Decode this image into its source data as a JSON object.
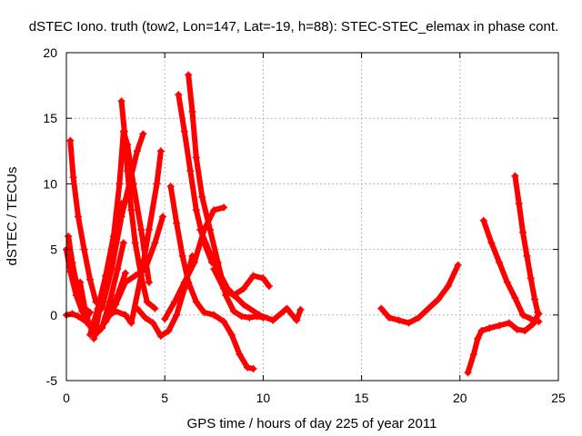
{
  "colors": {
    "series": "#ff0000",
    "grid": "#a0a0a0",
    "axis": "#000000",
    "background": "#ffffff"
  },
  "chart_data": {
    "type": "scatter",
    "marker": "plus",
    "title": "dSTEC Iono. truth (tow2, Lon=147, Lat=-19, h=88): STEC-STEC_elemax in phase cont.",
    "xlabel": "GPS time / hours of day 225 of year 2011",
    "ylabel": "dSTEC  / TECUs",
    "xlim": [
      0,
      25
    ],
    "ylim": [
      -5,
      20
    ],
    "xticks": [
      "0",
      "5",
      "10",
      "15",
      "20",
      "25"
    ],
    "yticks": [
      "-5",
      "0",
      "5",
      "10",
      "15",
      "20"
    ],
    "grid": true,
    "legend": "none",
    "series": [
      {
        "x": [
          0.0,
          0.2,
          0.5,
          0.8,
          1.0,
          1.2
        ],
        "y": [
          5.0,
          3.3,
          1.5,
          0.3,
          -0.3,
          0.2
        ]
      },
      {
        "x": [
          0.2,
          0.35,
          0.6,
          0.9,
          1.2,
          1.5
        ],
        "y": [
          13.3,
          10.5,
          7.5,
          5.0,
          2.7,
          1.0
        ]
      },
      {
        "x": [
          0.0,
          0.3,
          0.6,
          1.0,
          1.4,
          1.8,
          2.2,
          2.6,
          3.0
        ],
        "y": [
          0.0,
          0.1,
          -0.1,
          -0.5,
          -1.2,
          -0.9,
          0.0,
          1.5,
          3.2
        ]
      },
      {
        "x": [
          0.1,
          0.3,
          0.5,
          0.7,
          0.9,
          1.1
        ],
        "y": [
          6.0,
          4.0,
          2.5,
          1.3,
          0.5,
          0.3
        ]
      },
      {
        "x": [
          0.7,
          1.0,
          1.4,
          1.8,
          2.2,
          2.6,
          2.9
        ],
        "y": [
          2.5,
          0.0,
          -1.6,
          -1.0,
          1.0,
          3.5,
          5.5
        ]
      },
      {
        "x": [
          1.4,
          1.7,
          2.0,
          2.4,
          2.8
        ],
        "y": [
          -1.8,
          0.5,
          3.0,
          6.0,
          8.5
        ]
      },
      {
        "x": [
          1.2,
          1.6,
          2.0,
          2.4,
          2.7,
          2.9,
          3.1,
          3.4,
          3.8,
          4.2
        ],
        "y": [
          -1.5,
          0.5,
          3.0,
          6.0,
          10.0,
          14.0,
          13.0,
          10.0,
          6.5,
          2.5
        ]
      },
      {
        "x": [
          2.8,
          2.95,
          3.1,
          3.3,
          3.5,
          3.8,
          4.1,
          4.5
        ],
        "y": [
          16.3,
          14.0,
          11.0,
          8.0,
          5.5,
          3.0,
          1.0,
          0.5
        ]
      },
      {
        "x": [
          1.8,
          2.3,
          2.8,
          3.2,
          3.6,
          3.9
        ],
        "y": [
          0.5,
          3.5,
          7.5,
          10.0,
          12.5,
          13.8
        ]
      },
      {
        "x": [
          2.0,
          2.5,
          3.0,
          3.5,
          4.0,
          4.5,
          4.9
        ],
        "y": [
          -0.5,
          0.8,
          2.5,
          3.0,
          3.5,
          5.5,
          7.5
        ]
      },
      {
        "x": [
          2.0,
          2.5,
          3.0,
          3.3
        ],
        "y": [
          -0.2,
          0.3,
          0.0,
          -0.6
        ]
      },
      {
        "x": [
          3.3,
          3.8,
          4.2,
          4.6,
          4.8
        ],
        "y": [
          -0.6,
          3.0,
          6.5,
          10.0,
          12.5
        ]
      },
      {
        "x": [
          3.6,
          4.0,
          4.4,
          4.8,
          5.2,
          5.6,
          6.0,
          6.4
        ],
        "y": [
          0.5,
          -0.2,
          -0.6,
          -1.6,
          -1.2,
          0.0,
          2.0,
          4.5
        ]
      },
      {
        "x": [
          5.3,
          5.6,
          5.9,
          6.2,
          6.6,
          7.0,
          7.5,
          8.0,
          8.4,
          8.8,
          9.2,
          9.5
        ],
        "y": [
          9.8,
          7.0,
          4.5,
          2.5,
          1.0,
          0.2,
          0.0,
          -0.5,
          -1.5,
          -3.0,
          -4.0,
          -4.1
        ]
      },
      {
        "x": [
          5.7,
          6.0,
          6.3,
          6.6,
          7.0,
          7.4
        ],
        "y": [
          16.8,
          14.0,
          11.0,
          8.0,
          5.5,
          4.0
        ]
      },
      {
        "x": [
          6.2,
          6.4,
          6.6,
          6.9,
          7.3,
          7.7,
          8.1,
          8.5,
          8.9,
          9.3,
          9.7,
          10.0
        ],
        "y": [
          18.3,
          15.5,
          12.0,
          9.0,
          6.5,
          4.0,
          1.5,
          0.3,
          -0.1,
          -0.2,
          -0.1,
          -0.2
        ]
      },
      {
        "x": [
          5.0,
          5.5,
          6.0,
          6.5,
          7.0,
          7.5,
          8.0
        ],
        "y": [
          -0.3,
          1.0,
          2.5,
          4.0,
          6.5,
          8.0,
          8.2
        ]
      },
      {
        "x": [
          7.5,
          8.0,
          8.5,
          9.0,
          9.5,
          10.0,
          10.3
        ],
        "y": [
          3.5,
          2.0,
          1.5,
          2.0,
          3.0,
          2.8,
          2.2
        ]
      },
      {
        "x": [
          6.8,
          7.5,
          8.2,
          9.0,
          9.8,
          10.5,
          11.2,
          11.7,
          11.9
        ],
        "y": [
          6.5,
          4.0,
          2.0,
          0.8,
          0.0,
          -0.4,
          0.5,
          -0.4,
          0.4
        ]
      },
      {
        "x": [
          16.0,
          16.4,
          16.9,
          17.4,
          17.9,
          18.4,
          18.9,
          19.4,
          19.9
        ],
        "y": [
          0.5,
          -0.2,
          -0.4,
          -0.6,
          -0.2,
          0.5,
          1.2,
          2.2,
          3.8
        ]
      },
      {
        "x": [
          20.4,
          20.7,
          20.9,
          21.1,
          21.5,
          22.0,
          22.5,
          22.9,
          23.3,
          23.7,
          24.0
        ],
        "y": [
          -4.4,
          -3.0,
          -1.8,
          -1.2,
          -1.0,
          -0.8,
          -0.6,
          -1.1,
          -1.2,
          -0.7,
          0.1
        ]
      },
      {
        "x": [
          21.2,
          21.6,
          22.0,
          22.4,
          22.8,
          23.2,
          23.6,
          24.0
        ],
        "y": [
          7.2,
          5.5,
          4.0,
          2.5,
          1.3,
          0.0,
          -0.3,
          -0.5
        ]
      },
      {
        "x": [
          22.8,
          23.0,
          23.2,
          23.4,
          23.6,
          23.8,
          23.95
        ],
        "y": [
          10.6,
          8.5,
          6.3,
          4.5,
          2.8,
          1.2,
          0.2
        ]
      }
    ]
  }
}
